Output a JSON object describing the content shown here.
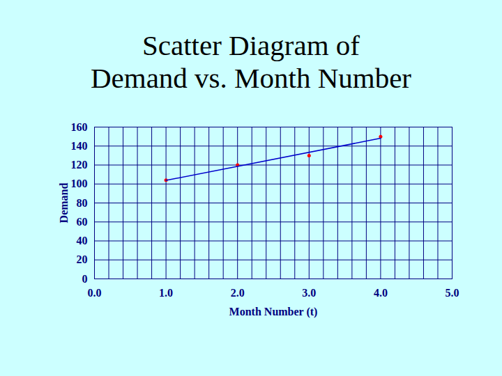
{
  "chart_data": {
    "type": "scatter",
    "title": "Scatter Diagram of\nDemand vs. Month Number",
    "xlabel": "Month Number (t)",
    "ylabel": "Demand",
    "xlim": [
      0,
      5
    ],
    "xticks": [
      0,
      1,
      2,
      3,
      4,
      5
    ],
    "ylim": [
      0,
      160
    ],
    "yticks": [
      0,
      20,
      40,
      60,
      80,
      100,
      120,
      140,
      160
    ],
    "grid": true,
    "series": [
      {
        "type": "scatter",
        "color": "#ff0000",
        "marker": "circle",
        "x": [
          1,
          2,
          3,
          4
        ],
        "values": [
          104,
          120,
          130,
          150
        ]
      },
      {
        "type": "line",
        "color": "#0000cc",
        "line_style": "solid",
        "x": [
          1,
          4
        ],
        "values": [
          103.8,
          148.2
        ]
      }
    ]
  }
}
